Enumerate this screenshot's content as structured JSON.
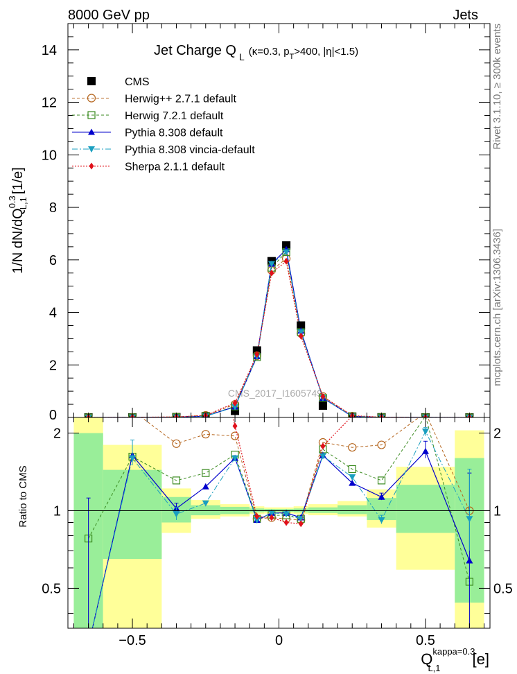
{
  "header": {
    "left": "8000 GeV pp",
    "right": "Jets"
  },
  "side_labels": {
    "rivet": "Rivet 3.1.10, ≥ 300k events",
    "mcplots": "mcplots.cern.ch [arXiv:1306.3436]"
  },
  "watermark": "CMS_2017_I1605749",
  "colors": {
    "cms": "#000000",
    "herwigpp": "#b5651d",
    "herwig7": "#3a8a1f",
    "pythia": "#0000cc",
    "vincia": "#1a9fc0",
    "sherpa": "#e0101a",
    "band_yellow": "#ffff99",
    "band_green": "#99ee99"
  },
  "chart_data": [
    {
      "type": "line",
      "panel": "main",
      "title": "Jet Charge Q",
      "title_sub": "L",
      "title_cut_a": "(κ=0.3, p",
      "title_cut_sub": "T",
      "title_cut_b": ">400, |η|<1.5)",
      "ylabel": "1/N dN/dQ",
      "ylabel_sup": "0.3",
      "ylabel_sub": "L,1",
      "ylabel_unit": "[1/e]",
      "xlim": [
        -0.72,
        0.72
      ],
      "ylim": [
        0,
        15
      ],
      "yticks": [
        "0",
        "2",
        "4",
        "6",
        "8",
        "10",
        "12",
        "14"
      ],
      "legend_position": "top-left",
      "x": [
        -0.65,
        -0.5,
        -0.35,
        -0.25,
        -0.15,
        -0.075,
        -0.025,
        0.025,
        0.075,
        0.15,
        0.25,
        0.35,
        0.5,
        0.65
      ],
      "series": [
        {
          "name": "CMS",
          "key": "cms",
          "marker": "square-filled",
          "values": [
            0.0,
            0.002,
            0.01,
            0.04,
            0.25,
            2.55,
            5.95,
            6.55,
            3.5,
            0.45,
            0.03,
            0.005,
            0.001,
            0.0
          ]
        },
        {
          "name": "Herwig++ 2.7.1 default",
          "key": "herwigpp",
          "marker": "circle-open",
          "values": [
            0.0,
            0.004,
            0.02,
            0.08,
            0.5,
            2.35,
            5.6,
            6.05,
            3.2,
            0.8,
            0.05,
            0.009,
            0.002,
            0.0
          ]
        },
        {
          "name": "Herwig 7.2.1 default",
          "key": "herwig7",
          "marker": "square-open",
          "values": [
            0.0,
            0.003,
            0.013,
            0.06,
            0.42,
            2.3,
            5.7,
            6.3,
            3.25,
            0.75,
            0.045,
            0.007,
            0.002,
            0.0
          ]
        },
        {
          "name": "Pythia 8.308 default",
          "key": "pythia",
          "marker": "triangle-up",
          "values": [
            0.0,
            0.003,
            0.011,
            0.05,
            0.41,
            2.33,
            5.85,
            6.4,
            3.3,
            0.74,
            0.039,
            0.006,
            0.0017,
            0.0
          ]
        },
        {
          "name": "Pythia 8.308 vincia-default",
          "key": "vincia",
          "marker": "triangle-down",
          "values": [
            0.0,
            0.003,
            0.01,
            0.045,
            0.4,
            2.32,
            5.85,
            6.3,
            3.25,
            0.74,
            0.04,
            0.0045,
            0.002,
            0.0
          ]
        },
        {
          "name": "Sherpa 2.1.1 default",
          "key": "sherpa",
          "marker": "diamond",
          "values": [
            0.0,
            0.004,
            0.02,
            0.08,
            0.55,
            2.4,
            5.5,
            5.95,
            3.1,
            0.8,
            0.07,
            0.01,
            0.003,
            0.0
          ]
        }
      ]
    },
    {
      "type": "line",
      "panel": "ratio",
      "ylabel": "Ratio to CMS",
      "xlabel": "Q",
      "xlabel_sup": "kappa=0.3",
      "xlabel_sub": "L,1",
      "xlabel_unit": "[e]",
      "xlim": [
        -0.72,
        0.72
      ],
      "ylim": [
        0.35,
        2.3
      ],
      "xticks": [
        "−0.5",
        "0",
        "0.5"
      ],
      "xtick_values": [
        -0.5,
        0,
        0.5
      ],
      "yticks": [
        "0.5",
        "1",
        "2"
      ],
      "ytick_values": [
        0.5,
        1,
        2
      ],
      "bins": [
        [
          -0.7,
          -0.6
        ],
        [
          -0.6,
          -0.4
        ],
        [
          -0.4,
          -0.3
        ],
        [
          -0.3,
          -0.2
        ],
        [
          -0.2,
          -0.1
        ],
        [
          -0.1,
          -0.05
        ],
        [
          -0.05,
          0.0
        ],
        [
          0.0,
          0.05
        ],
        [
          0.05,
          0.1
        ],
        [
          0.1,
          0.2
        ],
        [
          0.2,
          0.3
        ],
        [
          0.3,
          0.4
        ],
        [
          0.4,
          0.6
        ],
        [
          0.6,
          0.7
        ]
      ],
      "band_yellow": [
        [
          0.3,
          2.35
        ],
        [
          0.3,
          1.8
        ],
        [
          0.82,
          1.22
        ],
        [
          0.93,
          1.1
        ],
        [
          0.95,
          1.06
        ],
        [
          0.97,
          1.04
        ],
        [
          0.975,
          1.03
        ],
        [
          0.975,
          1.03
        ],
        [
          0.97,
          1.04
        ],
        [
          0.96,
          1.06
        ],
        [
          0.95,
          1.09
        ],
        [
          0.86,
          1.21
        ],
        [
          0.59,
          1.48
        ],
        [
          0.3,
          2.05
        ]
      ],
      "band_green": [
        [
          0.3,
          2.0
        ],
        [
          0.65,
          1.44
        ],
        [
          0.9,
          1.13
        ],
        [
          0.96,
          1.05
        ],
        [
          0.97,
          1.035
        ],
        [
          0.985,
          1.02
        ],
        [
          0.99,
          1.015
        ],
        [
          0.99,
          1.015
        ],
        [
          0.985,
          1.02
        ],
        [
          0.98,
          1.03
        ],
        [
          0.97,
          1.05
        ],
        [
          0.92,
          1.12
        ],
        [
          0.82,
          1.26
        ],
        [
          0.44,
          1.6
        ]
      ],
      "series": [
        {
          "name": "Herwig++ 2.7.1 default",
          "key": "herwigpp",
          "values": [
            null,
            2.45,
            1.82,
            1.98,
            1.95,
            0.93,
            0.94,
            0.93,
            0.92,
            1.84,
            1.76,
            1.8,
            2.4,
            1.0
          ]
        },
        {
          "name": "Herwig 7.2.1 default",
          "key": "herwig7",
          "values": [
            0.78,
            1.62,
            1.31,
            1.4,
            1.65,
            0.93,
            0.96,
            0.96,
            0.93,
            1.73,
            1.45,
            1.31,
            2.33,
            0.53
          ]
        },
        {
          "name": "Pythia 8.308 default",
          "key": "pythia",
          "values": [
            0.3,
            1.64,
            1.02,
            1.24,
            1.6,
            0.92,
            0.98,
            0.98,
            0.94,
            1.64,
            1.28,
            1.13,
            1.7,
            0.64
          ]
        },
        {
          "name": "Pythia 8.308 vincia-default",
          "key": "vincia",
          "values": [
            0.3,
            1.6,
            0.97,
            1.07,
            1.6,
            0.92,
            0.98,
            0.97,
            0.93,
            1.63,
            1.35,
            0.92,
            2.03,
            0.93
          ]
        },
        {
          "name": "Sherpa 2.1.1 default",
          "key": "sherpa",
          "values": [
            null,
            null,
            null,
            null,
            2.13,
            0.95,
            0.94,
            0.9,
            0.89,
            1.78,
            2.33,
            null,
            null,
            null
          ]
        }
      ],
      "errors": {
        "pythia": [
          [
            0.3,
            1.12
          ],
          null,
          [
            0.98,
            1.07
          ],
          null,
          null,
          null,
          null,
          null,
          null,
          null,
          null,
          [
            1.1,
            1.17
          ],
          [
            1.6,
            1.86
          ],
          [
            0.35,
            1.4
          ]
        ],
        "vincia": [
          null,
          [
            1.5,
            1.88
          ],
          [
            0.92,
            1.03
          ],
          null,
          null,
          null,
          null,
          null,
          null,
          null,
          null,
          [
            0.89,
            0.96
          ],
          [
            1.95,
            2.1
          ],
          [
            0.7,
            1.45
          ]
        ]
      }
    }
  ]
}
